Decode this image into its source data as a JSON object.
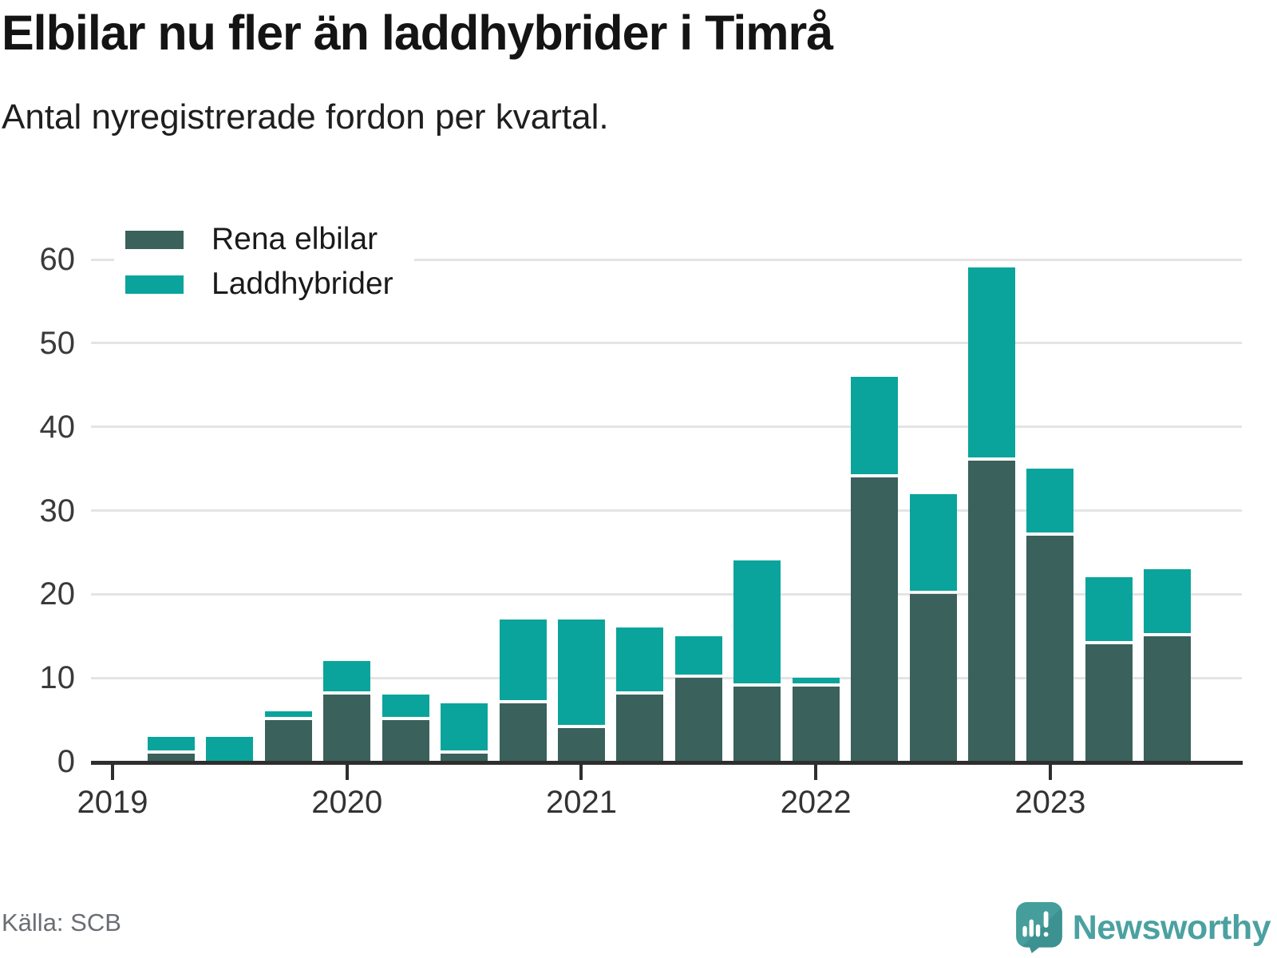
{
  "title": "Elbilar nu fler än laddhybrider i Timrå",
  "subtitle": "Antal nyregistrerade fordon per kvartal.",
  "source": "Källa: SCB",
  "brand": {
    "name": "Newsworthy",
    "icon": "newsworthy-speech-bubble-chart-icon"
  },
  "colors": {
    "elbilar": "#3a615c",
    "laddhybrider": "#0aa49c",
    "gridline": "#e4e4e4",
    "axis": "#2e2e2e",
    "tick_label": "#333333",
    "brand_teal": "#449c9a",
    "source_gray": "#6a6e73"
  },
  "legend": [
    {
      "label": "Rena elbilar",
      "series_key": "elbilar"
    },
    {
      "label": "Laddhybrider",
      "series_key": "laddhybrider"
    }
  ],
  "chart_data": {
    "type": "bar",
    "stacked": true,
    "title": "Elbilar nu fler än laddhybrider i Timrå",
    "subtitle": "Antal nyregistrerade fordon per kvartal.",
    "xlabel": "",
    "ylabel": "",
    "grid": "horizontal",
    "legend_position": "top-left-inside",
    "ylim": [
      0,
      63
    ],
    "y_ticks": [
      0,
      10,
      20,
      30,
      40,
      50,
      60
    ],
    "x_tick_labels": [
      "2019",
      "2020",
      "2021",
      "2022",
      "2023"
    ],
    "categories": [
      "2019 K2",
      "2019 K3",
      "2019 K4",
      "2020 K1",
      "2020 K2",
      "2020 K3",
      "2020 K4",
      "2021 K1",
      "2021 K2",
      "2021 K3",
      "2021 K4",
      "2022 K1",
      "2022 K2",
      "2022 K3",
      "2022 K4",
      "2023 K1",
      "2023 K2",
      "2023 K3"
    ],
    "series": [
      {
        "name": "Rena elbilar",
        "color": "#3a615c",
        "values": [
          1,
          0,
          5,
          8,
          5,
          1,
          7,
          4,
          8,
          10,
          9,
          9,
          34,
          20,
          36,
          27,
          14,
          15
        ]
      },
      {
        "name": "Laddhybrider",
        "color": "#0aa49c",
        "values": [
          2,
          3,
          1,
          4,
          3,
          6,
          10,
          13,
          8,
          5,
          15,
          1,
          12,
          12,
          23,
          8,
          8,
          8
        ]
      }
    ],
    "totals": [
      3,
      3,
      6,
      12,
      8,
      7,
      17,
      17,
      16,
      15,
      24,
      10,
      46,
      32,
      59,
      35,
      22,
      23
    ]
  }
}
